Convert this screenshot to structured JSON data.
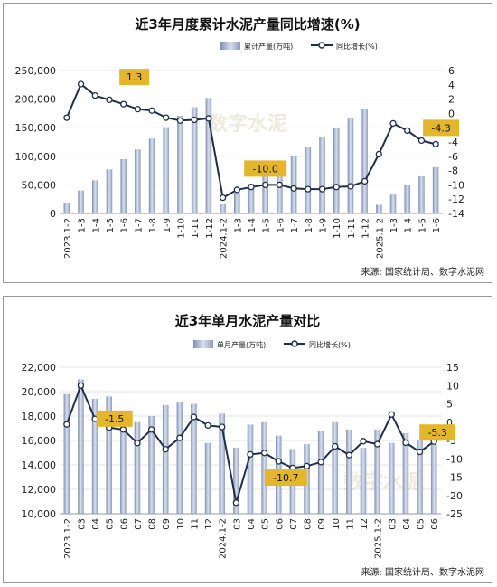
{
  "chart_data": [
    {
      "type": "bar",
      "title": "近3年月度累计水泥产量同比增速(%)",
      "legend": {
        "bar": "累计产量(万吨)",
        "line": "同比增长(%)",
        "placement": "top-right"
      },
      "source": "来源: 国家统计局、数字水泥网",
      "watermark": "数字水泥",
      "categories": [
        "2023.1-2",
        "1-3",
        "1-4",
        "1-5",
        "1-6",
        "1-7",
        "1-8",
        "1-9",
        "1-10",
        "1-11",
        "1-12",
        "2024.1-2",
        "1-3",
        "1-4",
        "1-5",
        "1-6",
        "1-7",
        "1-8",
        "1-9",
        "1-10",
        "1-11",
        "1-12",
        "2025.1-2",
        "1-3",
        "1-4",
        "1-5",
        "1-6"
      ],
      "bar_values": [
        19000,
        40000,
        58000,
        77000,
        95000,
        112000,
        131000,
        151000,
        171000,
        186000,
        202000,
        17000,
        36000,
        52000,
        70000,
        85000,
        100000,
        116000,
        134000,
        150000,
        166000,
        182000,
        15000,
        33000,
        50000,
        65000,
        81000
      ],
      "line_values": [
        -0.6,
        4.1,
        2.5,
        1.9,
        1.3,
        0.6,
        0.4,
        -0.6,
        -1.0,
        -0.9,
        -0.7,
        -11.8,
        -10.7,
        -10.3,
        -10.0,
        -10.0,
        -10.5,
        -10.6,
        -10.6,
        -10.3,
        -10.2,
        -9.5,
        -5.7,
        -1.4,
        -2.4,
        -3.8,
        -4.3
      ],
      "annotations": [
        {
          "index": 4,
          "text": "1.3"
        },
        {
          "index": 14,
          "text": "-10.0"
        },
        {
          "index": 26,
          "text": "-4.3"
        }
      ],
      "ylim_left": [
        0,
        250000
      ],
      "yticks_left": [
        "0",
        "50,000",
        "100,000",
        "150,000",
        "200,000",
        "250,000"
      ],
      "ylim_right": [
        -14,
        6
      ],
      "yticks_right": [
        "-14",
        "-12",
        "-10",
        "-8",
        "-6",
        "-4",
        "-2",
        "0",
        "2",
        "4",
        "6"
      ],
      "grid": true
    },
    {
      "type": "bar",
      "title": "近3年单月水泥产量对比",
      "legend": {
        "bar": "单月产量(万吨)",
        "line": "同比增长(%)",
        "placement": "top-right"
      },
      "source": "来源: 国家统计局、数字水泥网",
      "watermark": "数字水泥",
      "categories": [
        "2023.1-2",
        "03",
        "04",
        "05",
        "06",
        "07",
        "08",
        "09",
        "10",
        "11",
        "12",
        "2024.1-2",
        "03",
        "04",
        "05",
        "06",
        "07",
        "08",
        "09",
        "10",
        "11",
        "12",
        "2025.1-2",
        "03",
        "04",
        "05",
        "06"
      ],
      "bar_values": [
        19800,
        21000,
        19400,
        19600,
        18300,
        17500,
        18000,
        18900,
        19100,
        19000,
        15800,
        18200,
        15400,
        17300,
        17500,
        16400,
        15300,
        15700,
        16800,
        17500,
        16900,
        15400,
        16900,
        15800,
        16600,
        16000,
        15700
      ],
      "line_values": [
        -0.6,
        10.0,
        0.9,
        -1.5,
        -2.0,
        -5.7,
        -2.0,
        -7.4,
        -4.3,
        1.4,
        -0.9,
        -1.3,
        -22.0,
        -8.8,
        -8.4,
        -10.7,
        -12.5,
        -12.0,
        -10.9,
        -6.6,
        -9.0,
        -5.2,
        -6.0,
        2.1,
        -5.6,
        -8.1,
        -5.3
      ],
      "annotations": [
        {
          "index": 3,
          "text": "-1.5"
        },
        {
          "index": 15,
          "text": "-10.7"
        },
        {
          "index": 26,
          "text": "-5.3"
        }
      ],
      "ylim_left": [
        10000,
        22000
      ],
      "yticks_left": [
        "10,000",
        "12,000",
        "14,000",
        "16,000",
        "18,000",
        "20,000",
        "22,000"
      ],
      "ylim_right": [
        -25,
        15
      ],
      "yticks_right": [
        "-25",
        "-20",
        "-15",
        "-10",
        "-5",
        "0",
        "5",
        "10",
        "15"
      ],
      "grid": true
    }
  ]
}
